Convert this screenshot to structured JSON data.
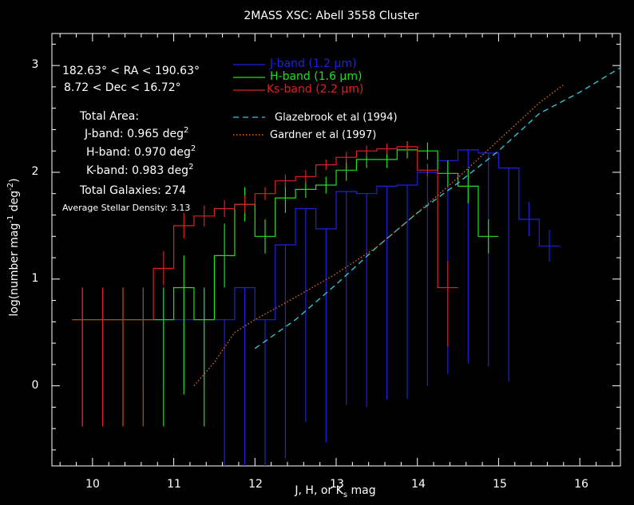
{
  "chart_data": {
    "type": "line",
    "title": "2MASS XSC: Abell 3558 Cluster",
    "xlabel_main": "J, H, or K",
    "xlabel_sub": "s",
    "xlabel_tail": " mag",
    "ylabel_main": "log(number mag",
    "ylabel_sup1": "-1",
    "ylabel_mid": " deg",
    "ylabel_sup2": "-2",
    "ylabel_tail": ")",
    "xlim": [
      9.5,
      16.5
    ],
    "ylim": [
      -0.75,
      3.3
    ],
    "xticks": [
      "10",
      "11",
      "12",
      "13",
      "14",
      "15",
      "16"
    ],
    "yticks": [
      "0",
      "1",
      "2",
      "3"
    ],
    "grid": false,
    "legend_position": "top-center",
    "info": {
      "ra": "182.63° < RA < 190.63°",
      "dec": "8.72 < Dec < 16.72°",
      "area_title": "Total Area:",
      "j_area": "J-band: 0.965 deg",
      "h_area": "H-band: 0.970 deg",
      "k_area": "K-band: 0.983 deg",
      "area_sup": "2",
      "total": "Total Galaxies: 274",
      "density": "Average Stellar Density: 3.13"
    },
    "series": [
      {
        "name": "J-band (1.2 μm)",
        "color": "#2020e0",
        "x": [
          10.625,
          10.875,
          11.125,
          11.375,
          11.625,
          11.875,
          12.125,
          12.375,
          12.625,
          12.875,
          13.125,
          13.375,
          13.625,
          13.875,
          14.125,
          14.375,
          14.625,
          14.875,
          15.125,
          15.375,
          15.625
        ],
        "y": [
          0.62,
          0.62,
          0.62,
          0.62,
          0.62,
          0.92,
          0.62,
          1.32,
          1.66,
          1.47,
          1.82,
          1.8,
          1.87,
          1.88,
          2.0,
          2.11,
          2.21,
          2.18,
          2.04,
          1.56,
          1.31
        ],
        "err_lo": [
          0.62,
          0.62,
          0.62,
          0.62,
          2.0,
          2.0,
          2.0,
          2.0,
          2.0,
          2.0,
          2.0,
          2.0,
          2.0,
          2.0,
          2.0,
          2.0,
          2.0,
          2.0,
          2.0,
          0.16,
          0.15
        ],
        "err_hi": [
          0.3,
          0.3,
          0.3,
          0.3,
          0.0,
          0.0,
          0.0,
          0.0,
          0.0,
          0.0,
          0.0,
          0.0,
          0.0,
          0.0,
          0.0,
          0.0,
          0.0,
          0.0,
          0.0,
          0.16,
          0.15
        ]
      },
      {
        "name": "H-band (1.6 μm)",
        "color": "#20e020",
        "x": [
          9.875,
          10.125,
          10.375,
          10.625,
          10.875,
          11.125,
          11.375,
          11.625,
          11.875,
          12.125,
          12.375,
          12.625,
          12.875,
          13.125,
          13.375,
          13.625,
          13.875,
          14.125,
          14.375,
          14.625,
          14.875
        ],
        "y": [
          0.62,
          0.62,
          0.62,
          0.62,
          0.62,
          0.92,
          0.62,
          1.22,
          1.7,
          1.4,
          1.76,
          1.84,
          1.88,
          2.02,
          2.12,
          2.12,
          2.21,
          2.2,
          1.99,
          1.87,
          1.4
        ],
        "err_lo": [
          1.0,
          1.0,
          1.0,
          1.0,
          1.0,
          1.0,
          1.0,
          0.3,
          0.16,
          0.16,
          0.14,
          0.08,
          0.08,
          0.1,
          0.08,
          0.08,
          0.08,
          0.08,
          0.12,
          0.16,
          0.16
        ],
        "err_hi": [
          0.3,
          0.3,
          0.3,
          0.3,
          0.3,
          0.3,
          0.3,
          0.3,
          0.16,
          0.16,
          0.14,
          0.08,
          0.08,
          0.1,
          0.08,
          0.08,
          0.08,
          0.08,
          0.12,
          0.16,
          0.16
        ]
      },
      {
        "name": "Ks-band (2.2 μm)",
        "color": "#e02020",
        "x": [
          9.875,
          10.125,
          10.375,
          10.625,
          10.875,
          11.125,
          11.375,
          11.625,
          11.875,
          12.125,
          12.375,
          12.625,
          12.875,
          13.125,
          13.375,
          13.625,
          13.875,
          14.125,
          14.375
        ],
        "y": [
          0.62,
          0.62,
          0.62,
          0.62,
          1.1,
          1.5,
          1.59,
          1.66,
          1.7,
          1.8,
          1.92,
          1.96,
          2.07,
          2.14,
          2.2,
          2.22,
          2.24,
          2.02,
          0.92
        ],
        "err_lo": [
          1.0,
          1.0,
          1.0,
          1.0,
          0.16,
          0.12,
          0.1,
          0.08,
          0.08,
          0.06,
          0.06,
          0.06,
          0.05,
          0.05,
          0.05,
          0.05,
          0.05,
          0.06,
          0.55
        ],
        "err_hi": [
          0.3,
          0.3,
          0.3,
          0.3,
          0.16,
          0.12,
          0.1,
          0.08,
          0.08,
          0.06,
          0.06,
          0.06,
          0.05,
          0.05,
          0.05,
          0.05,
          0.05,
          0.06,
          0.25
        ]
      },
      {
        "name": "Glazebrook et al (1994)",
        "color": "#30d0e0",
        "dash": "dashed",
        "x": [
          12.0,
          12.5,
          13.0,
          13.5,
          14.0,
          14.5,
          15.0,
          15.5,
          16.0,
          16.5
        ],
        "y": [
          0.35,
          0.62,
          0.95,
          1.3,
          1.62,
          1.9,
          2.2,
          2.55,
          2.75,
          2.98
        ]
      },
      {
        "name": "Gardner et al (1997)",
        "color": "#e07020",
        "dash": "dotted",
        "x": [
          11.25,
          11.5,
          11.75,
          12.0,
          12.5,
          13.0,
          13.5,
          14.0,
          14.5,
          15.0,
          15.5,
          15.8
        ],
        "y": [
          0.0,
          0.22,
          0.5,
          0.62,
          0.83,
          1.05,
          1.3,
          1.62,
          1.95,
          2.3,
          2.65,
          2.82
        ]
      }
    ]
  }
}
